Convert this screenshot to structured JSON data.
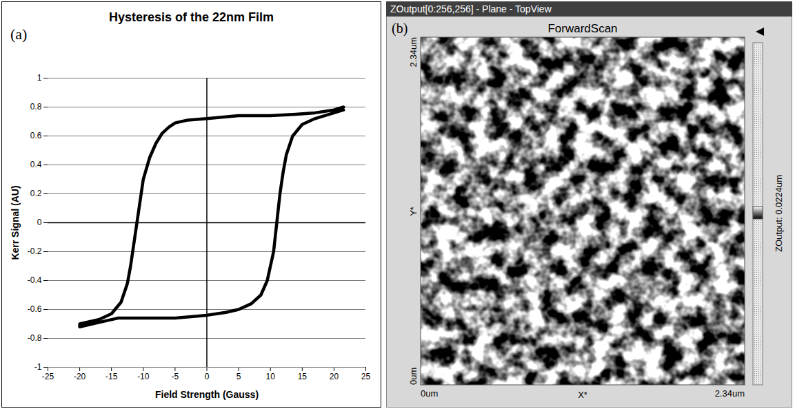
{
  "chart_data": {
    "type": "line",
    "panel_label": "(a)",
    "title": "Hysteresis of the 22nm Film",
    "x_label": "Field Strength (Gauss)",
    "y_label": "Kerr Signal (AU)",
    "x": [
      21.5,
      20,
      17,
      14,
      10,
      5,
      0,
      -3,
      -5,
      -6,
      -7,
      -8,
      -9,
      -10,
      -10.5,
      -11,
      -11.5,
      -12,
      -12.5,
      -13.5,
      -15,
      -17,
      -20,
      -20,
      -17,
      -14,
      -10,
      -5,
      0,
      3,
      5,
      7,
      8.5,
      9.5,
      10.5,
      11,
      11.5,
      12,
      12.5,
      13.5,
      15,
      17,
      20,
      21.5
    ],
    "values": [
      0.8,
      0.78,
      0.76,
      0.75,
      0.74,
      0.74,
      0.72,
      0.71,
      0.69,
      0.66,
      0.62,
      0.55,
      0.45,
      0.3,
      0.15,
      0,
      -0.15,
      -0.3,
      -0.42,
      -0.55,
      -0.63,
      -0.67,
      -0.7,
      -0.72,
      -0.69,
      -0.66,
      -0.66,
      -0.66,
      -0.64,
      -0.62,
      -0.6,
      -0.56,
      -0.5,
      -0.4,
      -0.2,
      0,
      0.2,
      0.35,
      0.47,
      0.6,
      0.68,
      0.72,
      0.76,
      0.78
    ],
    "color": "#000000",
    "xlim": [
      -25,
      25
    ],
    "xticks": [
      -25,
      -20,
      -15,
      -10,
      -5,
      0,
      5,
      10,
      15,
      20,
      25
    ],
    "ylim": [
      -1,
      1
    ],
    "yticks": [
      -1,
      -0.8,
      -0.6,
      -0.4,
      -0.2,
      0,
      0.2,
      0.4,
      0.6,
      0.8,
      1
    ],
    "grid": true
  },
  "image_panel": {
    "window_title": "ZOutput[0:256,256] - Plane - TopView",
    "panel_label": "(b)",
    "scan_title": "ForwardScan",
    "y_axis": {
      "top": "2.34um",
      "middle": "Y*",
      "bottom": "0um"
    },
    "x_axis": {
      "left": "0um",
      "middle": "X*",
      "right": "2.34um"
    },
    "colorbar_label": "ZOutput: 0.0224um"
  }
}
